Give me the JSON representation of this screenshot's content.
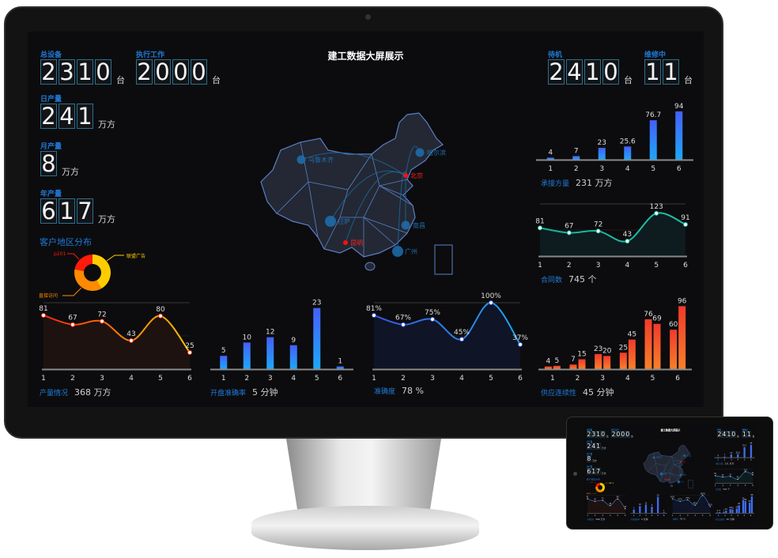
{
  "title": "建工数据大屏展示",
  "kpis": {
    "total_devices": {
      "label": "总设备",
      "value": "2310",
      "unit": "台"
    },
    "working": {
      "label": "执行工作",
      "value": "2000",
      "unit": "台"
    },
    "daily_output": {
      "label": "日产量",
      "value": "241",
      "unit": "万方"
    },
    "monthly_output": {
      "label": "月产量",
      "value": "8",
      "unit": "万方"
    },
    "yearly_output": {
      "label": "年产量",
      "value": "617",
      "unit": "万方"
    },
    "standby": {
      "label": "待机",
      "value": "2410",
      "unit": "台"
    },
    "repairing": {
      "label": "维修中",
      "value": "11",
      "unit": "台"
    }
  },
  "customer_region": {
    "title": "客户地区分布",
    "slices": [
      {
        "name": "联盟广告",
        "color": "#ffcc00"
      },
      {
        "name": "直接访问",
        "color": "#ff8a00"
      },
      {
        "name": "p201",
        "color": "#ff1a0a"
      }
    ]
  },
  "map": {
    "cities": [
      {
        "name": "乌鲁木齐",
        "type": "bubble"
      },
      {
        "name": "哈尔滨",
        "type": "bubble"
      },
      {
        "name": "北京",
        "type": "hub"
      },
      {
        "name": "拉萨",
        "type": "bubble"
      },
      {
        "name": "南昌",
        "type": "bubble"
      },
      {
        "name": "昆明",
        "type": "hub"
      },
      {
        "name": "广州",
        "type": "bubble"
      }
    ]
  },
  "chart_data": [
    {
      "type": "line",
      "id": "output",
      "categories": [
        "1",
        "2",
        "3",
        "4",
        "5",
        "6"
      ],
      "values": [
        81,
        67,
        72,
        43,
        80,
        25
      ],
      "ylim": [
        0,
        100
      ],
      "colors": [
        "#ff2a0a",
        "#ffc400"
      ]
    },
    {
      "type": "bar",
      "id": "opening",
      "categories": [
        "1",
        "2",
        "3",
        "4",
        "5",
        "6"
      ],
      "values": [
        5,
        10,
        12,
        9,
        23,
        1
      ],
      "ylim": [
        0,
        25
      ],
      "colors": [
        "#4460f8",
        "#1ea8f8"
      ]
    },
    {
      "type": "line",
      "id": "accuracy",
      "categories": [
        "1",
        "2",
        "3",
        "4",
        "5",
        "6"
      ],
      "values": [
        81,
        67,
        75,
        45,
        100,
        37
      ],
      "labels": [
        "81%",
        "67%",
        "75%",
        "45%",
        "100%",
        "37%"
      ],
      "ylim": [
        0,
        100
      ],
      "colors": [
        "#3a55e0",
        "#18a8f0"
      ]
    },
    {
      "type": "bar",
      "id": "volume",
      "categories": [
        "1",
        "2",
        "3",
        "4",
        "5",
        "6"
      ],
      "values": [
        4,
        7,
        23,
        25.6,
        76.7,
        94
      ],
      "ylim": [
        0,
        100
      ],
      "colors": [
        "#4460f8",
        "#1ea8f8"
      ]
    },
    {
      "type": "line",
      "id": "contracts",
      "categories": [
        "1",
        "2",
        "3",
        "4",
        "5",
        "6"
      ],
      "values": [
        81,
        67,
        72,
        43,
        123,
        91
      ],
      "ylim": [
        0,
        150
      ],
      "colors": [
        "#15b49a",
        "#20c0a8"
      ]
    },
    {
      "type": "bar",
      "id": "supply",
      "categories": [
        "1",
        "2",
        "3",
        "4",
        "5",
        "6"
      ],
      "series": [
        {
          "values": [
            4,
            7,
            23,
            25,
            76,
            60
          ]
        },
        {
          "values": [
            5,
            15,
            20,
            45,
            69,
            96
          ]
        }
      ],
      "ylim": [
        0,
        100
      ],
      "colors": [
        "#f23a2a",
        "#f6802a"
      ]
    }
  ],
  "captions": {
    "output": {
      "label": "产量情况",
      "value": "368 万方"
    },
    "opening": {
      "label": "开盘准确率",
      "value": "5 分钟"
    },
    "accuracy": {
      "label": "准确度",
      "value": "78 %"
    },
    "volume": {
      "label": "承接方量",
      "value": "231 万方"
    },
    "contracts": {
      "label": "合同数",
      "value": "745 个"
    },
    "supply": {
      "label": "供应连续性",
      "value": "45 分钟"
    }
  }
}
